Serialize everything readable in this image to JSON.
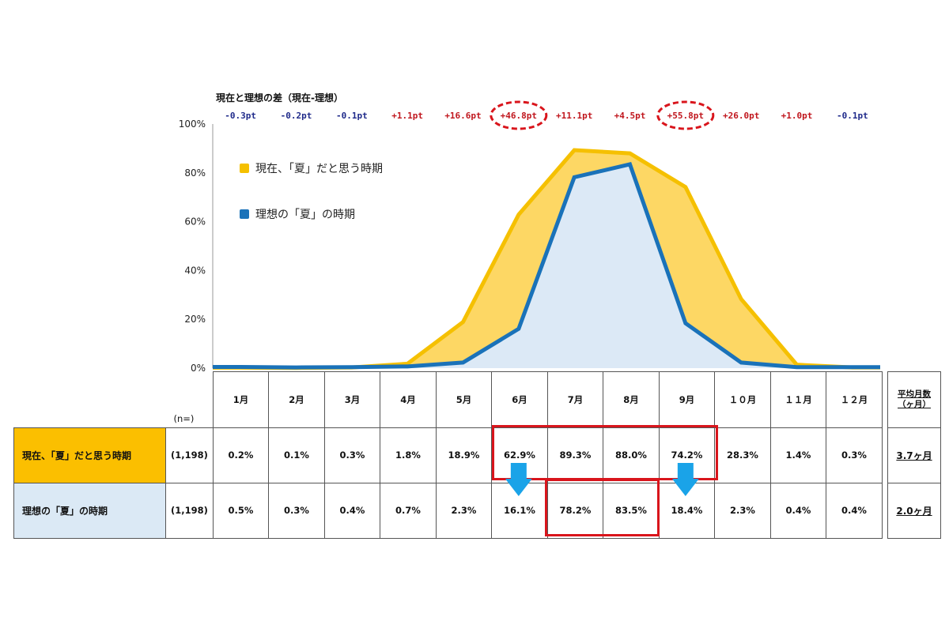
{
  "chart_data": {
    "type": "area",
    "diff_title": "現在と理想の差（現在-理想）",
    "categories": [
      "1月",
      "2月",
      "3月",
      "4月",
      "5月",
      "6月",
      "7月",
      "8月",
      "9月",
      "10月",
      "11月",
      "12月"
    ],
    "ylim": [
      0,
      100
    ],
    "yticks": [
      "0%",
      "20%",
      "40%",
      "60%",
      "80%",
      "100%"
    ],
    "legend_position": "top-left",
    "series": [
      {
        "name": "現在、「夏」だと思う時期",
        "color": "#f5c000",
        "fill": "#fdd764",
        "values": [
          0.2,
          0.1,
          0.3,
          1.8,
          18.9,
          62.9,
          89.3,
          88.0,
          74.2,
          28.3,
          1.4,
          0.3
        ]
      },
      {
        "name": "理想の「夏」の時期",
        "color": "#1a72b9",
        "fill": "#dce9f6",
        "values": [
          0.5,
          0.3,
          0.4,
          0.7,
          2.3,
          16.1,
          78.2,
          83.5,
          18.4,
          2.3,
          0.4,
          0.4
        ]
      }
    ],
    "differences": [
      {
        "text": "-0.3pt",
        "sign": "neg",
        "circled": false
      },
      {
        "text": "-0.2pt",
        "sign": "neg",
        "circled": false
      },
      {
        "text": "-0.1pt",
        "sign": "neg",
        "circled": false
      },
      {
        "text": "+1.1pt",
        "sign": "pos",
        "circled": false
      },
      {
        "text": "+16.6pt",
        "sign": "pos",
        "circled": false
      },
      {
        "text": "+46.8pt",
        "sign": "pos",
        "circled": true
      },
      {
        "text": "+11.1pt",
        "sign": "pos",
        "circled": false
      },
      {
        "text": "+4.5pt",
        "sign": "pos",
        "circled": false
      },
      {
        "text": "+55.8pt",
        "sign": "pos",
        "circled": true
      },
      {
        "text": "+26.0pt",
        "sign": "pos",
        "circled": false
      },
      {
        "text": "+1.0pt",
        "sign": "pos",
        "circled": false
      },
      {
        "text": "-0.1pt",
        "sign": "neg",
        "circled": false
      }
    ],
    "colors": {
      "positive": "#c0161d",
      "negative": "#1f2a8a",
      "highlight": "#d9151c",
      "arrow": "#1aa3e8"
    }
  },
  "table": {
    "n_label": "(n=)",
    "months": [
      "1月",
      "2月",
      "3月",
      "4月",
      "5月",
      "6月",
      "7月",
      "8月",
      "9月",
      "１０月",
      "１１月",
      "１２月"
    ],
    "avg_header_1": "平均月数",
    "avg_header_2": "（ヶ月）",
    "rows": [
      {
        "label": "現在、「夏」だと思う時期",
        "n": "(1,198)",
        "cells": [
          "0.2%",
          "0.1%",
          "0.3%",
          "1.8%",
          "18.9%",
          "62.9%",
          "89.3%",
          "88.0%",
          "74.2%",
          "28.3%",
          "1.4%",
          "0.3%"
        ],
        "avg": "3.7ヶ月",
        "bg": "#fbbf00"
      },
      {
        "label": "理想の「夏」の時期",
        "n": "(1,198)",
        "cells": [
          "0.5%",
          "0.3%",
          "0.4%",
          "0.7%",
          "2.3%",
          "16.1%",
          "78.2%",
          "83.5%",
          "18.4%",
          "2.3%",
          "0.4%",
          "0.4%"
        ],
        "avg": "2.0ヶ月",
        "bg": "#dbe9f5"
      }
    ]
  }
}
